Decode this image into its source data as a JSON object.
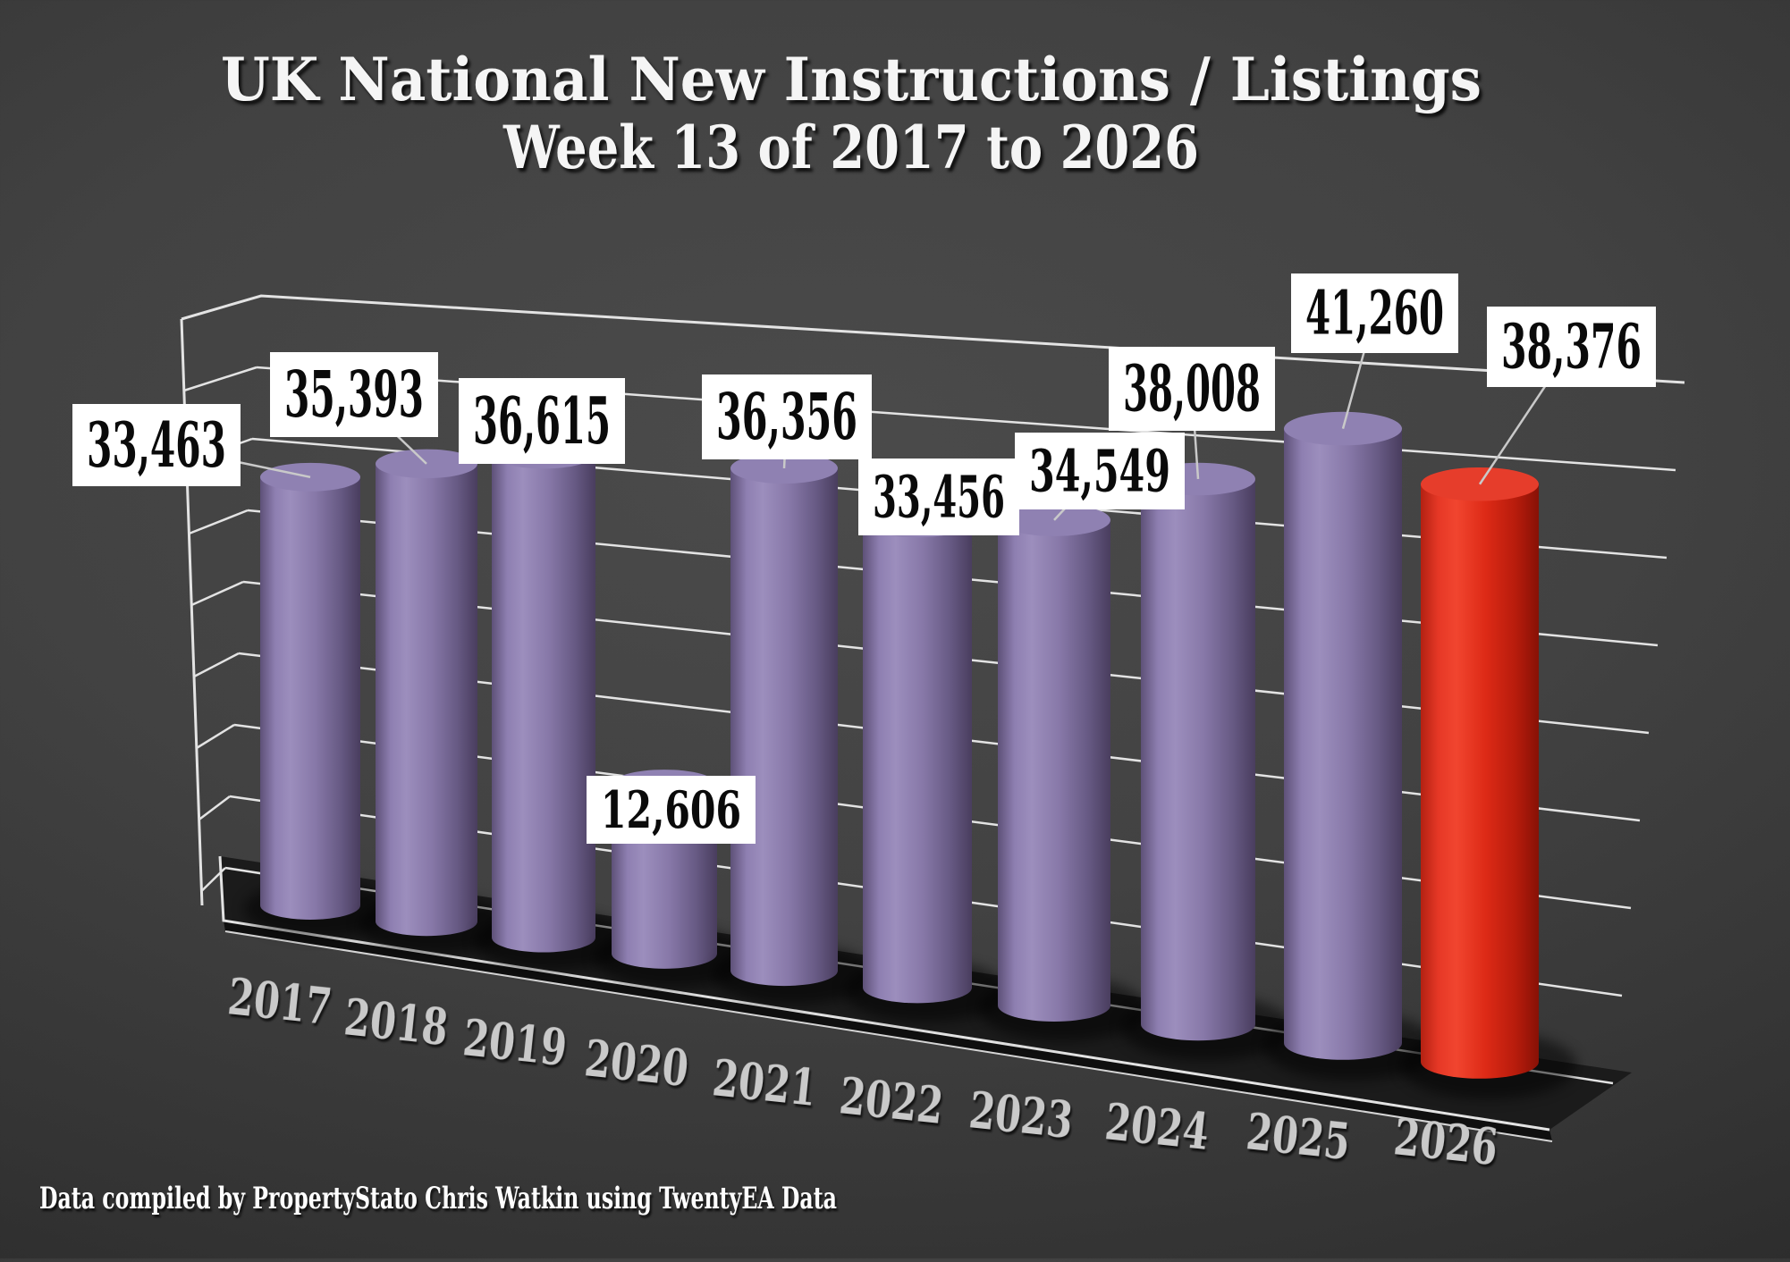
{
  "title": {
    "line1": "UK National New Instructions / Listings",
    "line2": "Week 13 of 2017 to 2026"
  },
  "footer": {
    "credit": "Data compiled by PropertyStato Chris Watkin using TwentyEA Data"
  },
  "chart_data": {
    "type": "bar",
    "variant": "3d-cylinder-perspective",
    "title": "UK National New Instructions / Listings Week 13 of 2017 to 2026",
    "categories": [
      "2017",
      "2018",
      "2019",
      "2020",
      "2021",
      "2022",
      "2023",
      "2024",
      "2025",
      "2026"
    ],
    "values": [
      33463,
      35393,
      36615,
      12606,
      36356,
      33456,
      34549,
      38008,
      41260,
      38376
    ],
    "value_labels": [
      "33,463",
      "35,393",
      "36,615",
      "12,606",
      "36,356",
      "33,456",
      "34,549",
      "38,008",
      "41,260",
      "38,376"
    ],
    "highlight_index": 9,
    "ylim": [
      0,
      45000
    ],
    "grid_step": 5000,
    "grid": true,
    "legend": null,
    "colors": {
      "bar": "#8b7bad",
      "bar_highlight": "#e02a18",
      "label_box": "#ffffff",
      "label_text": "#0a0a0a",
      "axis_label": "#c9c9c9",
      "grid": "#e3e3e3",
      "leader": "#c9c9c9",
      "floor": "#1b1b1b",
      "title": "#f5f5f5",
      "footer": "#ffffff"
    }
  }
}
